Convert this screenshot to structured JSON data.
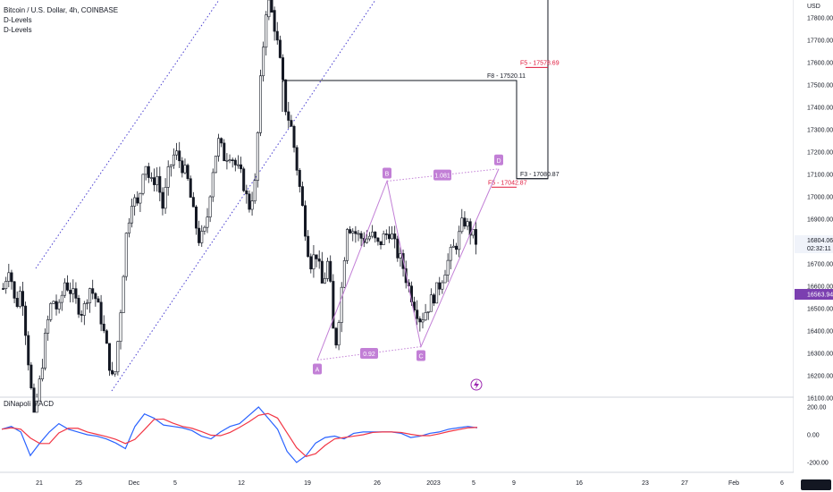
{
  "chart_title": "Bitcoin / U.S. Dollar, 4h, COINBASE",
  "indicators": [
    "D-Levels",
    "D-Levels"
  ],
  "macd_label": "DiNapoli MACD",
  "currency": "USD",
  "price_axis": {
    "ticks": [
      16100,
      16200,
      16300,
      16400,
      16500,
      16600,
      16700,
      16800,
      16900,
      17000,
      17100,
      17200,
      17300,
      17400,
      17500,
      17600,
      17700,
      17800
    ],
    "labels": [
      "16100.00",
      "16200.00",
      "16300.00",
      "16400.00",
      "16500.00",
      "16600.00",
      "16700.00",
      "16800.00",
      "16900.00",
      "17000.00",
      "17100.00",
      "17200.00",
      "17300.00",
      "17400.00",
      "17500.00",
      "17600.00",
      "17700.00",
      "17800.00"
    ],
    "current_price": "16804.06",
    "countdown": "02:32:11",
    "marked_price": "16563.94",
    "marked_price_value": 16563.94
  },
  "macd_axis": {
    "labels": [
      "200.00",
      "0.00",
      "-200.00"
    ],
    "ticks": [
      200,
      0,
      -200
    ]
  },
  "time_axis": {
    "labels": [
      "21",
      "25",
      "Dec",
      "5",
      "12",
      "19",
      "26",
      "2023",
      "5",
      "9",
      "16",
      "23",
      "27",
      "Feb",
      "6"
    ]
  },
  "levels": [
    {
      "label": "F8 - 17520.11",
      "price": 17520.11,
      "color": "#131722"
    },
    {
      "label": "F5 - 17578.69",
      "price": 17578.69,
      "color": "#e0183c"
    },
    {
      "label": "F3 - 17080.87",
      "price": 17080.87,
      "color": "#131722"
    },
    {
      "label": "F5 - 17042.87",
      "price": 17042.87,
      "color": "#e0183c"
    }
  ],
  "pattern": {
    "points": [
      {
        "name": "A",
        "price": 16270
      },
      {
        "name": "B",
        "price": 17070
      },
      {
        "name": "C",
        "price": 16330
      },
      {
        "name": "D",
        "price": 17125
      }
    ],
    "ratios": [
      "1.081",
      "0.92"
    ],
    "color": "#c27fd6"
  },
  "colors": {
    "candle": "#131722",
    "macd": "#2962ff",
    "signal": "#f23645",
    "channel": "#4a3fd0",
    "marker": "#9c27b0"
  },
  "chart_data": {
    "type": "candlestick",
    "title": "Bitcoin / U.S. Dollar, 4h, COINBASE",
    "series": [
      {
        "name": "BTCUSD",
        "close_path": [
          16590,
          16700,
          16500,
          16600,
          16300,
          16000,
          16180,
          16400,
          16550,
          16480,
          16620,
          16580,
          16520,
          16480,
          16600,
          16550,
          16450,
          16300,
          16150,
          16450,
          16820,
          17000,
          16950,
          17180,
          17050,
          17100,
          16950,
          17120,
          17200,
          17150,
          17080,
          16920,
          16800,
          16850,
          17100,
          17250,
          17180,
          17200,
          17130,
          17080,
          16950,
          17050,
          17550,
          17900,
          17800,
          17620,
          17400,
          17300,
          17100,
          16900,
          16700,
          16750,
          16600,
          16720,
          16300,
          16550,
          16880,
          16850,
          16820,
          16810,
          16830,
          16780,
          16820,
          16850,
          16760,
          16700,
          16600,
          16520,
          16450,
          16500,
          16550,
          16600,
          16680,
          16750,
          16800,
          16900,
          16850,
          16800
        ]
      },
      {
        "name": "DiNapoli MACD",
        "macd_path": [
          40,
          60,
          20,
          -150,
          -60,
          20,
          80,
          40,
          20,
          0,
          -10,
          -30,
          -60,
          -100,
          60,
          150,
          120,
          70,
          60,
          50,
          30,
          -10,
          -30,
          20,
          60,
          80,
          140,
          200,
          120,
          40,
          -120,
          -200,
          -150,
          -60,
          -20,
          -10,
          -30,
          10,
          20,
          20,
          20,
          20,
          10,
          -20,
          -10,
          10,
          20,
          40,
          50,
          60,
          50
        ]
      }
    ],
    "ylim": [
      16000,
      17850
    ]
  }
}
